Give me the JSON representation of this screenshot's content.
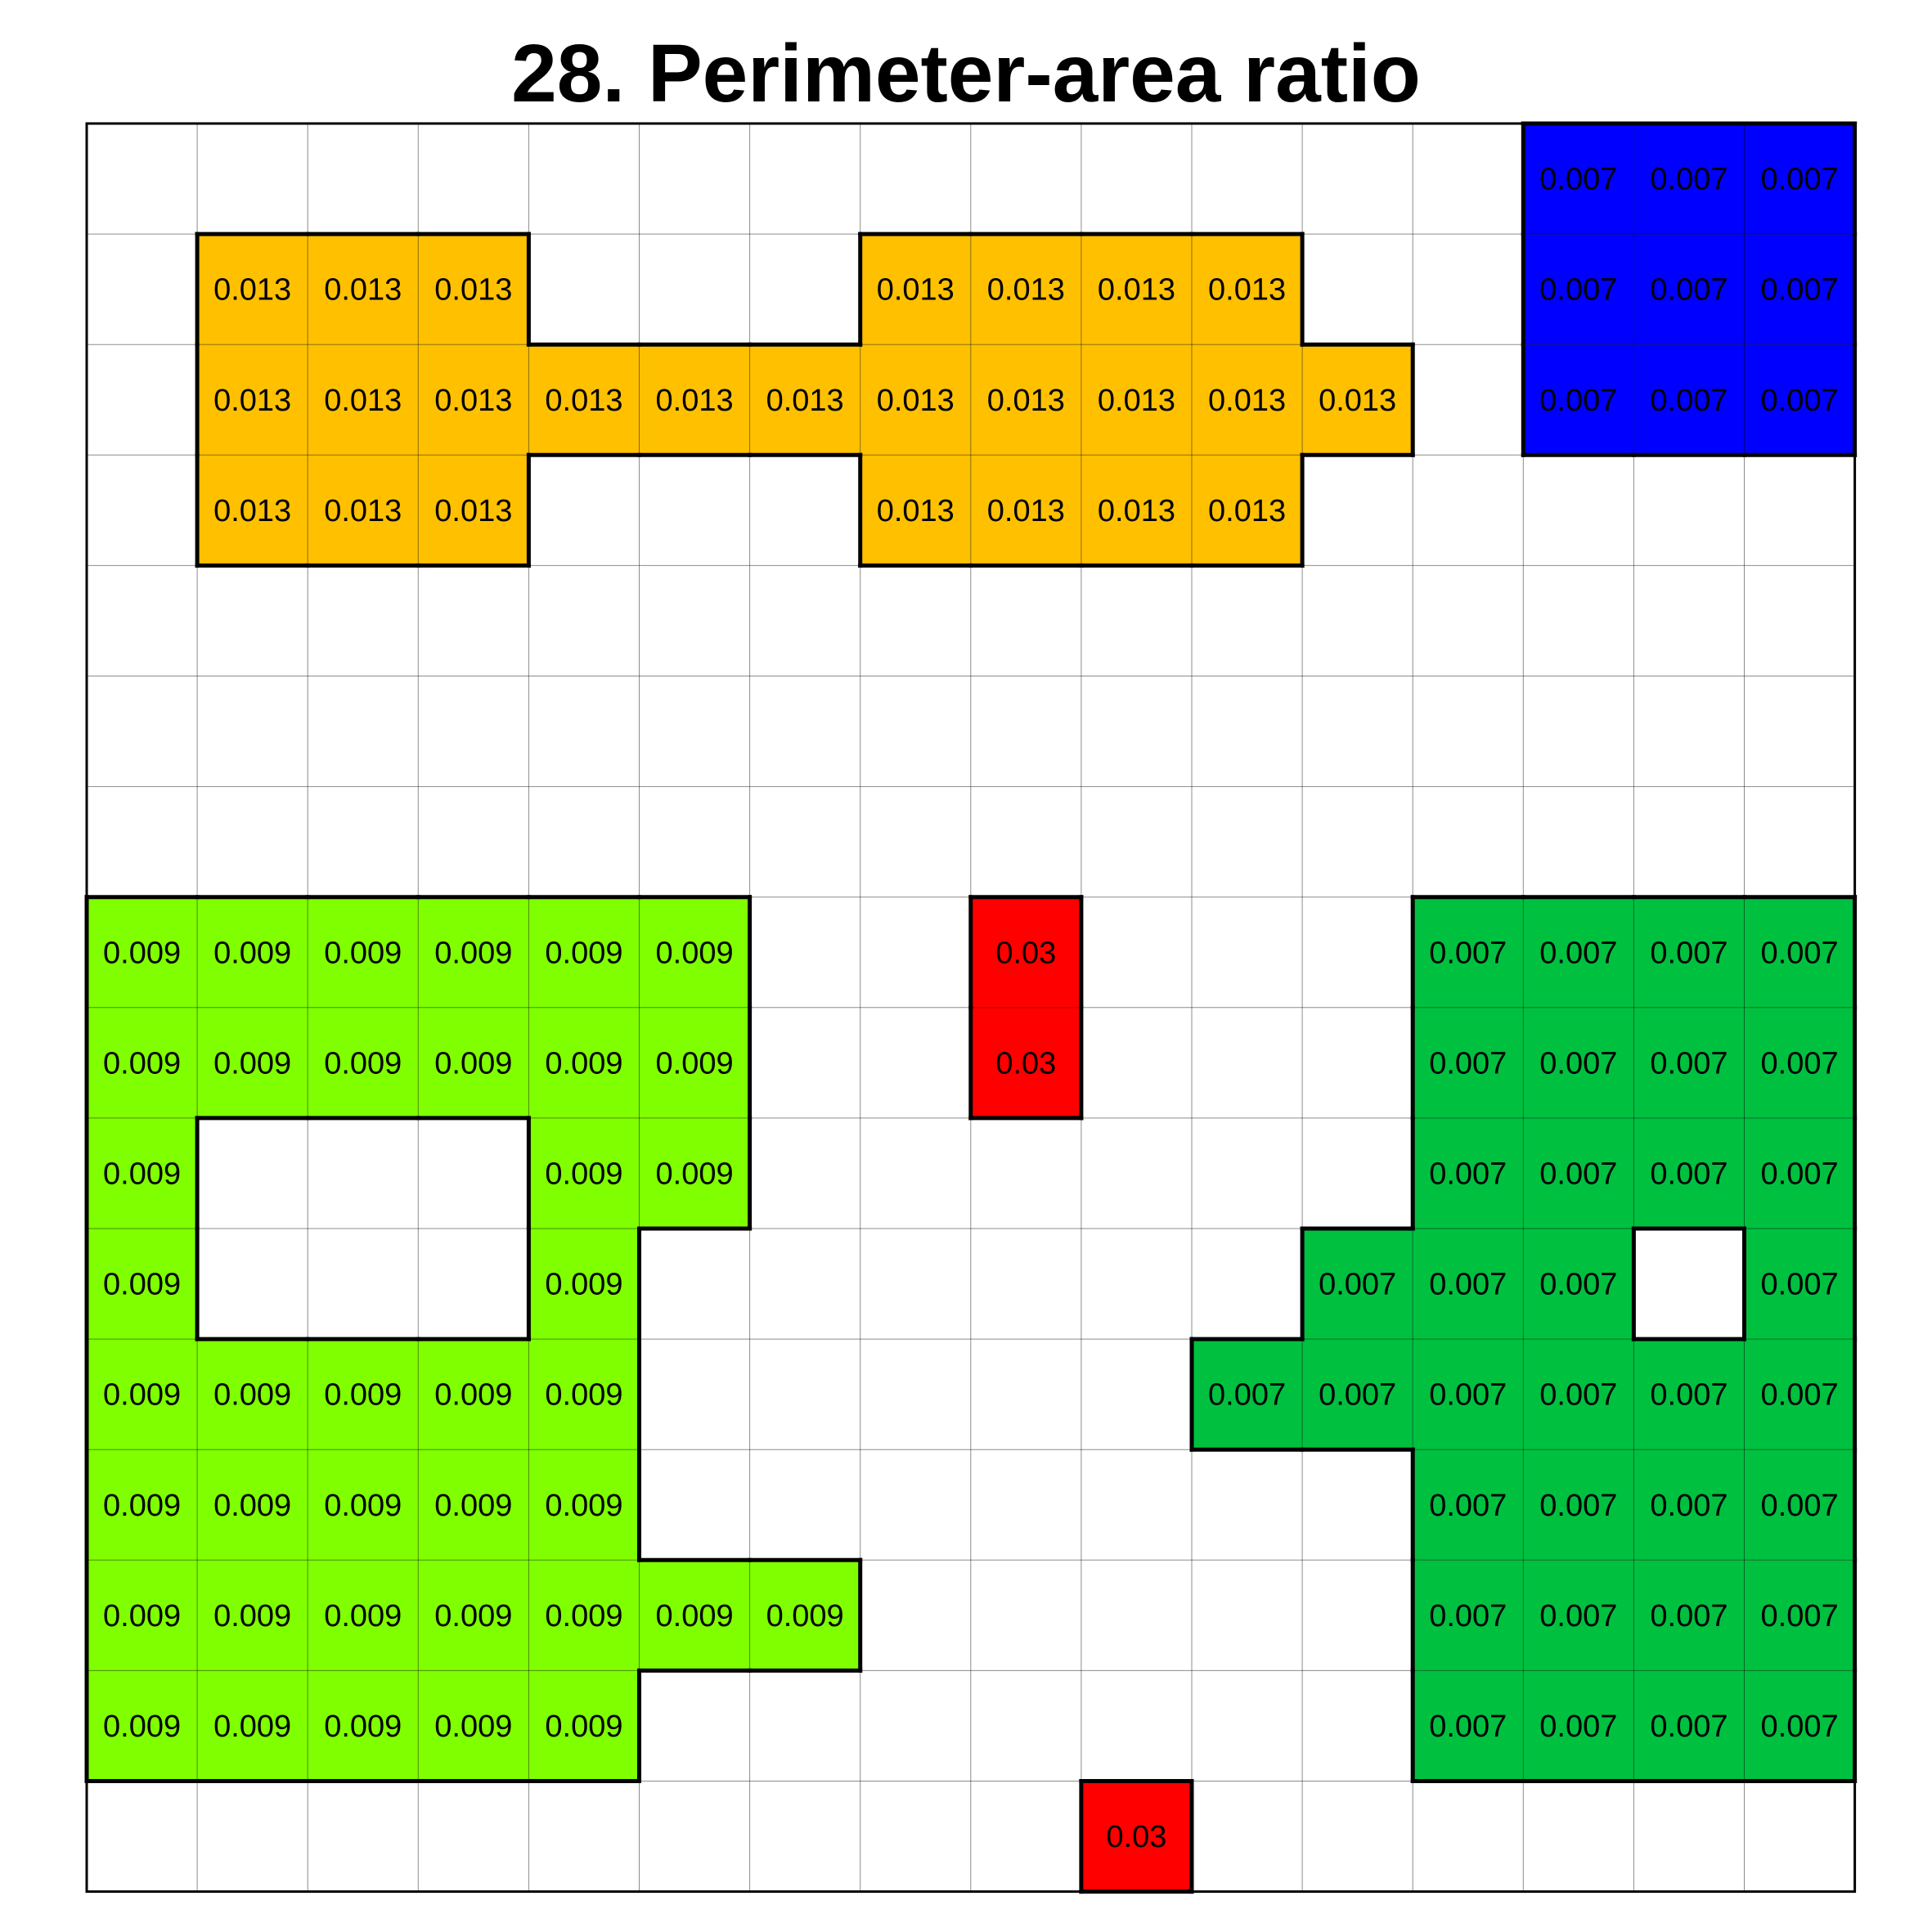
{
  "title": "28. Perimeter-area ratio",
  "chart_data": {
    "type": "heatmap",
    "rows": 16,
    "cols": 16,
    "patches": [
      {
        "value": "0.007",
        "color": "#0000ff",
        "cells": [
          [
            0,
            13
          ],
          [
            0,
            14
          ],
          [
            0,
            15
          ],
          [
            1,
            13
          ],
          [
            1,
            14
          ],
          [
            1,
            15
          ],
          [
            2,
            13
          ],
          [
            2,
            14
          ],
          [
            2,
            15
          ]
        ]
      },
      {
        "value": "0.013",
        "color": "#ffc000",
        "cells": [
          [
            1,
            1
          ],
          [
            1,
            2
          ],
          [
            1,
            3
          ],
          [
            1,
            7
          ],
          [
            1,
            8
          ],
          [
            1,
            9
          ],
          [
            1,
            10
          ],
          [
            2,
            1
          ],
          [
            2,
            2
          ],
          [
            2,
            3
          ],
          [
            2,
            4
          ],
          [
            2,
            5
          ],
          [
            2,
            6
          ],
          [
            2,
            7
          ],
          [
            2,
            8
          ],
          [
            2,
            9
          ],
          [
            2,
            10
          ],
          [
            2,
            11
          ],
          [
            3,
            1
          ],
          [
            3,
            2
          ],
          [
            3,
            3
          ],
          [
            3,
            7
          ],
          [
            3,
            8
          ],
          [
            3,
            9
          ],
          [
            3,
            10
          ]
        ]
      },
      {
        "value": "0.009",
        "color": "#7fff00",
        "cells": [
          [
            7,
            0
          ],
          [
            7,
            1
          ],
          [
            7,
            2
          ],
          [
            7,
            3
          ],
          [
            7,
            4
          ],
          [
            7,
            5
          ],
          [
            8,
            0
          ],
          [
            8,
            1
          ],
          [
            8,
            2
          ],
          [
            8,
            3
          ],
          [
            8,
            4
          ],
          [
            8,
            5
          ],
          [
            9,
            0
          ],
          [
            9,
            4
          ],
          [
            9,
            5
          ],
          [
            10,
            0
          ],
          [
            10,
            4
          ],
          [
            11,
            0
          ],
          [
            11,
            1
          ],
          [
            11,
            2
          ],
          [
            11,
            3
          ],
          [
            11,
            4
          ],
          [
            12,
            0
          ],
          [
            12,
            1
          ],
          [
            12,
            2
          ],
          [
            12,
            3
          ],
          [
            12,
            4
          ],
          [
            13,
            0
          ],
          [
            13,
            1
          ],
          [
            13,
            2
          ],
          [
            13,
            3
          ],
          [
            13,
            4
          ],
          [
            13,
            5
          ],
          [
            13,
            6
          ],
          [
            14,
            0
          ],
          [
            14,
            1
          ],
          [
            14,
            2
          ],
          [
            14,
            3
          ],
          [
            14,
            4
          ]
        ]
      },
      {
        "value": "0.03",
        "color": "#ff0000",
        "cells": [
          [
            7,
            8
          ],
          [
            8,
            8
          ]
        ]
      },
      {
        "value": "0.03",
        "color": "#ff0000",
        "cells": [
          [
            15,
            9
          ]
        ]
      },
      {
        "value": "0.007",
        "color": "#00c040",
        "cells": [
          [
            7,
            12
          ],
          [
            7,
            13
          ],
          [
            7,
            14
          ],
          [
            7,
            15
          ],
          [
            8,
            12
          ],
          [
            8,
            13
          ],
          [
            8,
            14
          ],
          [
            8,
            15
          ],
          [
            9,
            12
          ],
          [
            9,
            13
          ],
          [
            9,
            14
          ],
          [
            9,
            15
          ],
          [
            10,
            11
          ],
          [
            10,
            12
          ],
          [
            10,
            13
          ],
          [
            10,
            15
          ],
          [
            11,
            10
          ],
          [
            11,
            11
          ],
          [
            11,
            12
          ],
          [
            11,
            13
          ],
          [
            11,
            14
          ],
          [
            11,
            15
          ],
          [
            12,
            12
          ],
          [
            12,
            13
          ],
          [
            12,
            14
          ],
          [
            12,
            15
          ],
          [
            13,
            12
          ],
          [
            13,
            13
          ],
          [
            13,
            14
          ],
          [
            13,
            15
          ],
          [
            14,
            12
          ],
          [
            14,
            13
          ],
          [
            14,
            14
          ],
          [
            14,
            15
          ]
        ]
      }
    ]
  }
}
